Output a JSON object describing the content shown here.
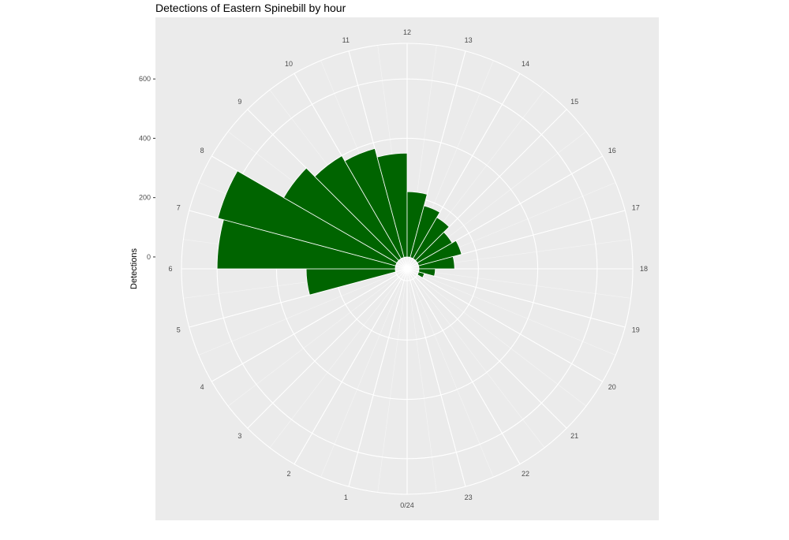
{
  "chart_data": {
    "type": "bar",
    "coord": "polar",
    "title": "Detections of Eastern Spinebill by hour",
    "ylabel": "Detections",
    "ylim": [
      -40,
      720
    ],
    "yticks": [
      "0",
      "200",
      "400",
      "600"
    ],
    "ytick_values": [
      0,
      200,
      400,
      600
    ],
    "hour_labels": [
      "0/24",
      "1",
      "2",
      "3",
      "4",
      "5",
      "6",
      "7",
      "8",
      "9",
      "10",
      "11",
      "12",
      "13",
      "14",
      "15",
      "16",
      "17",
      "18",
      "19",
      "20",
      "21",
      "22",
      "23"
    ],
    "categories": [
      "5",
      "6",
      "7",
      "8",
      "9",
      "10",
      "11",
      "12",
      "13",
      "14",
      "15",
      "16",
      "17",
      "18",
      "19"
    ],
    "values": [
      300,
      600,
      620,
      440,
      400,
      380,
      350,
      220,
      180,
      160,
      135,
      150,
      120,
      55,
      20
    ],
    "category_hours": [
      5.5,
      6.5,
      7.5,
      8.5,
      9.5,
      10.5,
      11.5,
      12.5,
      13.5,
      14.5,
      15.5,
      16.5,
      17.5,
      18.5,
      19.5
    ],
    "colors": {
      "bar": "#006400",
      "panel": "#ebebeb",
      "grid_major": "#ffffff",
      "grid_minor": "#f5f5f5"
    },
    "grid": true,
    "legend": "none"
  }
}
